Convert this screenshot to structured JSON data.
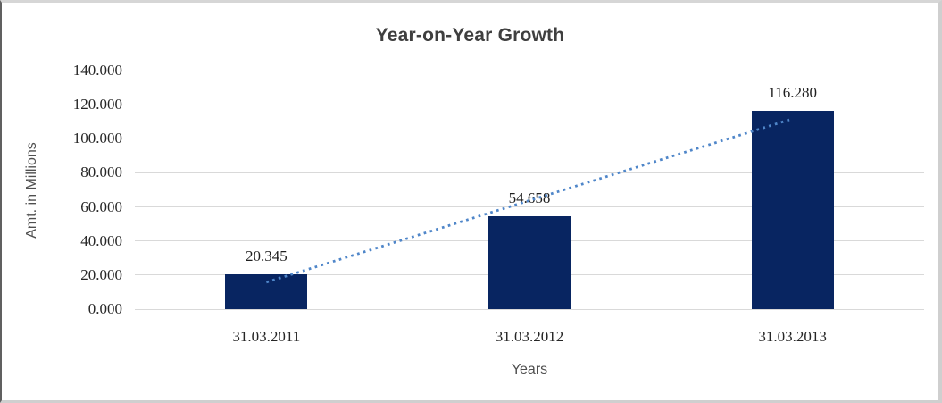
{
  "chart_data": {
    "type": "bar",
    "title": "Year-on-Year Growth",
    "categories": [
      "31.03.2011",
      "31.03.2012",
      "31.03.2013"
    ],
    "values": [
      20.345,
      54.658,
      116.28
    ],
    "value_labels": [
      "20.345",
      "54.658",
      "116.280"
    ],
    "xlabel": "Years",
    "ylabel": "Amt. in Millions",
    "ylim": [
      0,
      140
    ],
    "ytick_step": 20,
    "ytick_labels": [
      "0.000",
      "20.000",
      "40.000",
      "60.000",
      "80.000",
      "100.000",
      "120.000",
      "140.000"
    ],
    "grid": true,
    "legend": "none",
    "trendline": {
      "kind": "linear",
      "style": "dotted"
    },
    "colors": {
      "bar": "#082561",
      "trendline": "#4f86c9",
      "gridline": "#d9d9d9",
      "title_text": "#3f3f3f",
      "axis_title_text": "#4f4f4f",
      "tick_text": "#262626",
      "background": "#ffffff"
    }
  }
}
